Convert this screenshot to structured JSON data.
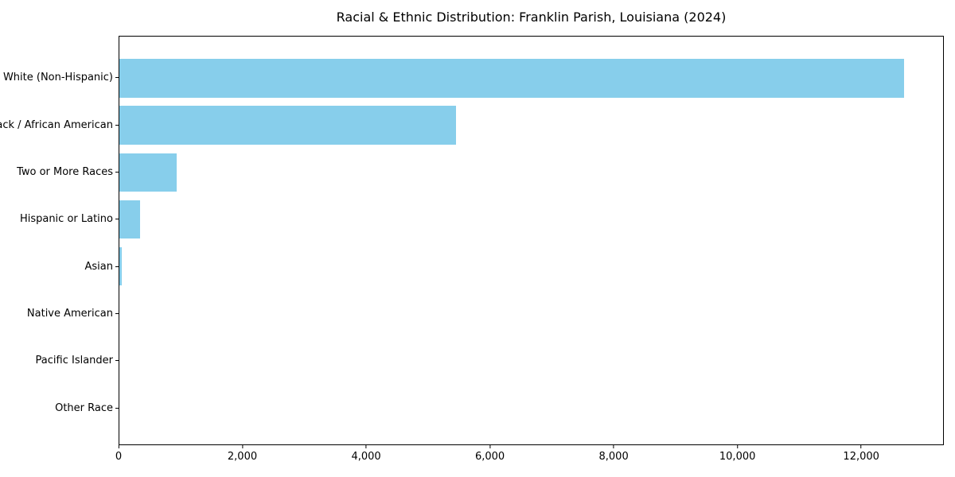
{
  "chart_data": {
    "type": "bar",
    "orientation": "horizontal",
    "title": "Racial & Ethnic Distribution: Franklin Parish, Louisiana (2024)",
    "categories": [
      "White (Non-Hispanic)",
      "Black / African American",
      "Two or More Races",
      "Hispanic or Latino",
      "Asian",
      "Native American",
      "Pacific Islander",
      "Other Race"
    ],
    "values": [
      12700,
      5450,
      930,
      330,
      40,
      0,
      0,
      0
    ],
    "xlabel": "",
    "ylabel": "",
    "xlim": [
      0,
      13335
    ],
    "x_ticks": [
      0,
      2000,
      4000,
      6000,
      8000,
      10000,
      12000
    ],
    "x_tick_labels": [
      "0",
      "2,000",
      "4,000",
      "6,000",
      "8,000",
      "10,000",
      "12,000"
    ],
    "bar_color": "#87CEEB",
    "background_color": "#ffffff",
    "text_color": "#000000",
    "grid": false,
    "legend": "none"
  }
}
